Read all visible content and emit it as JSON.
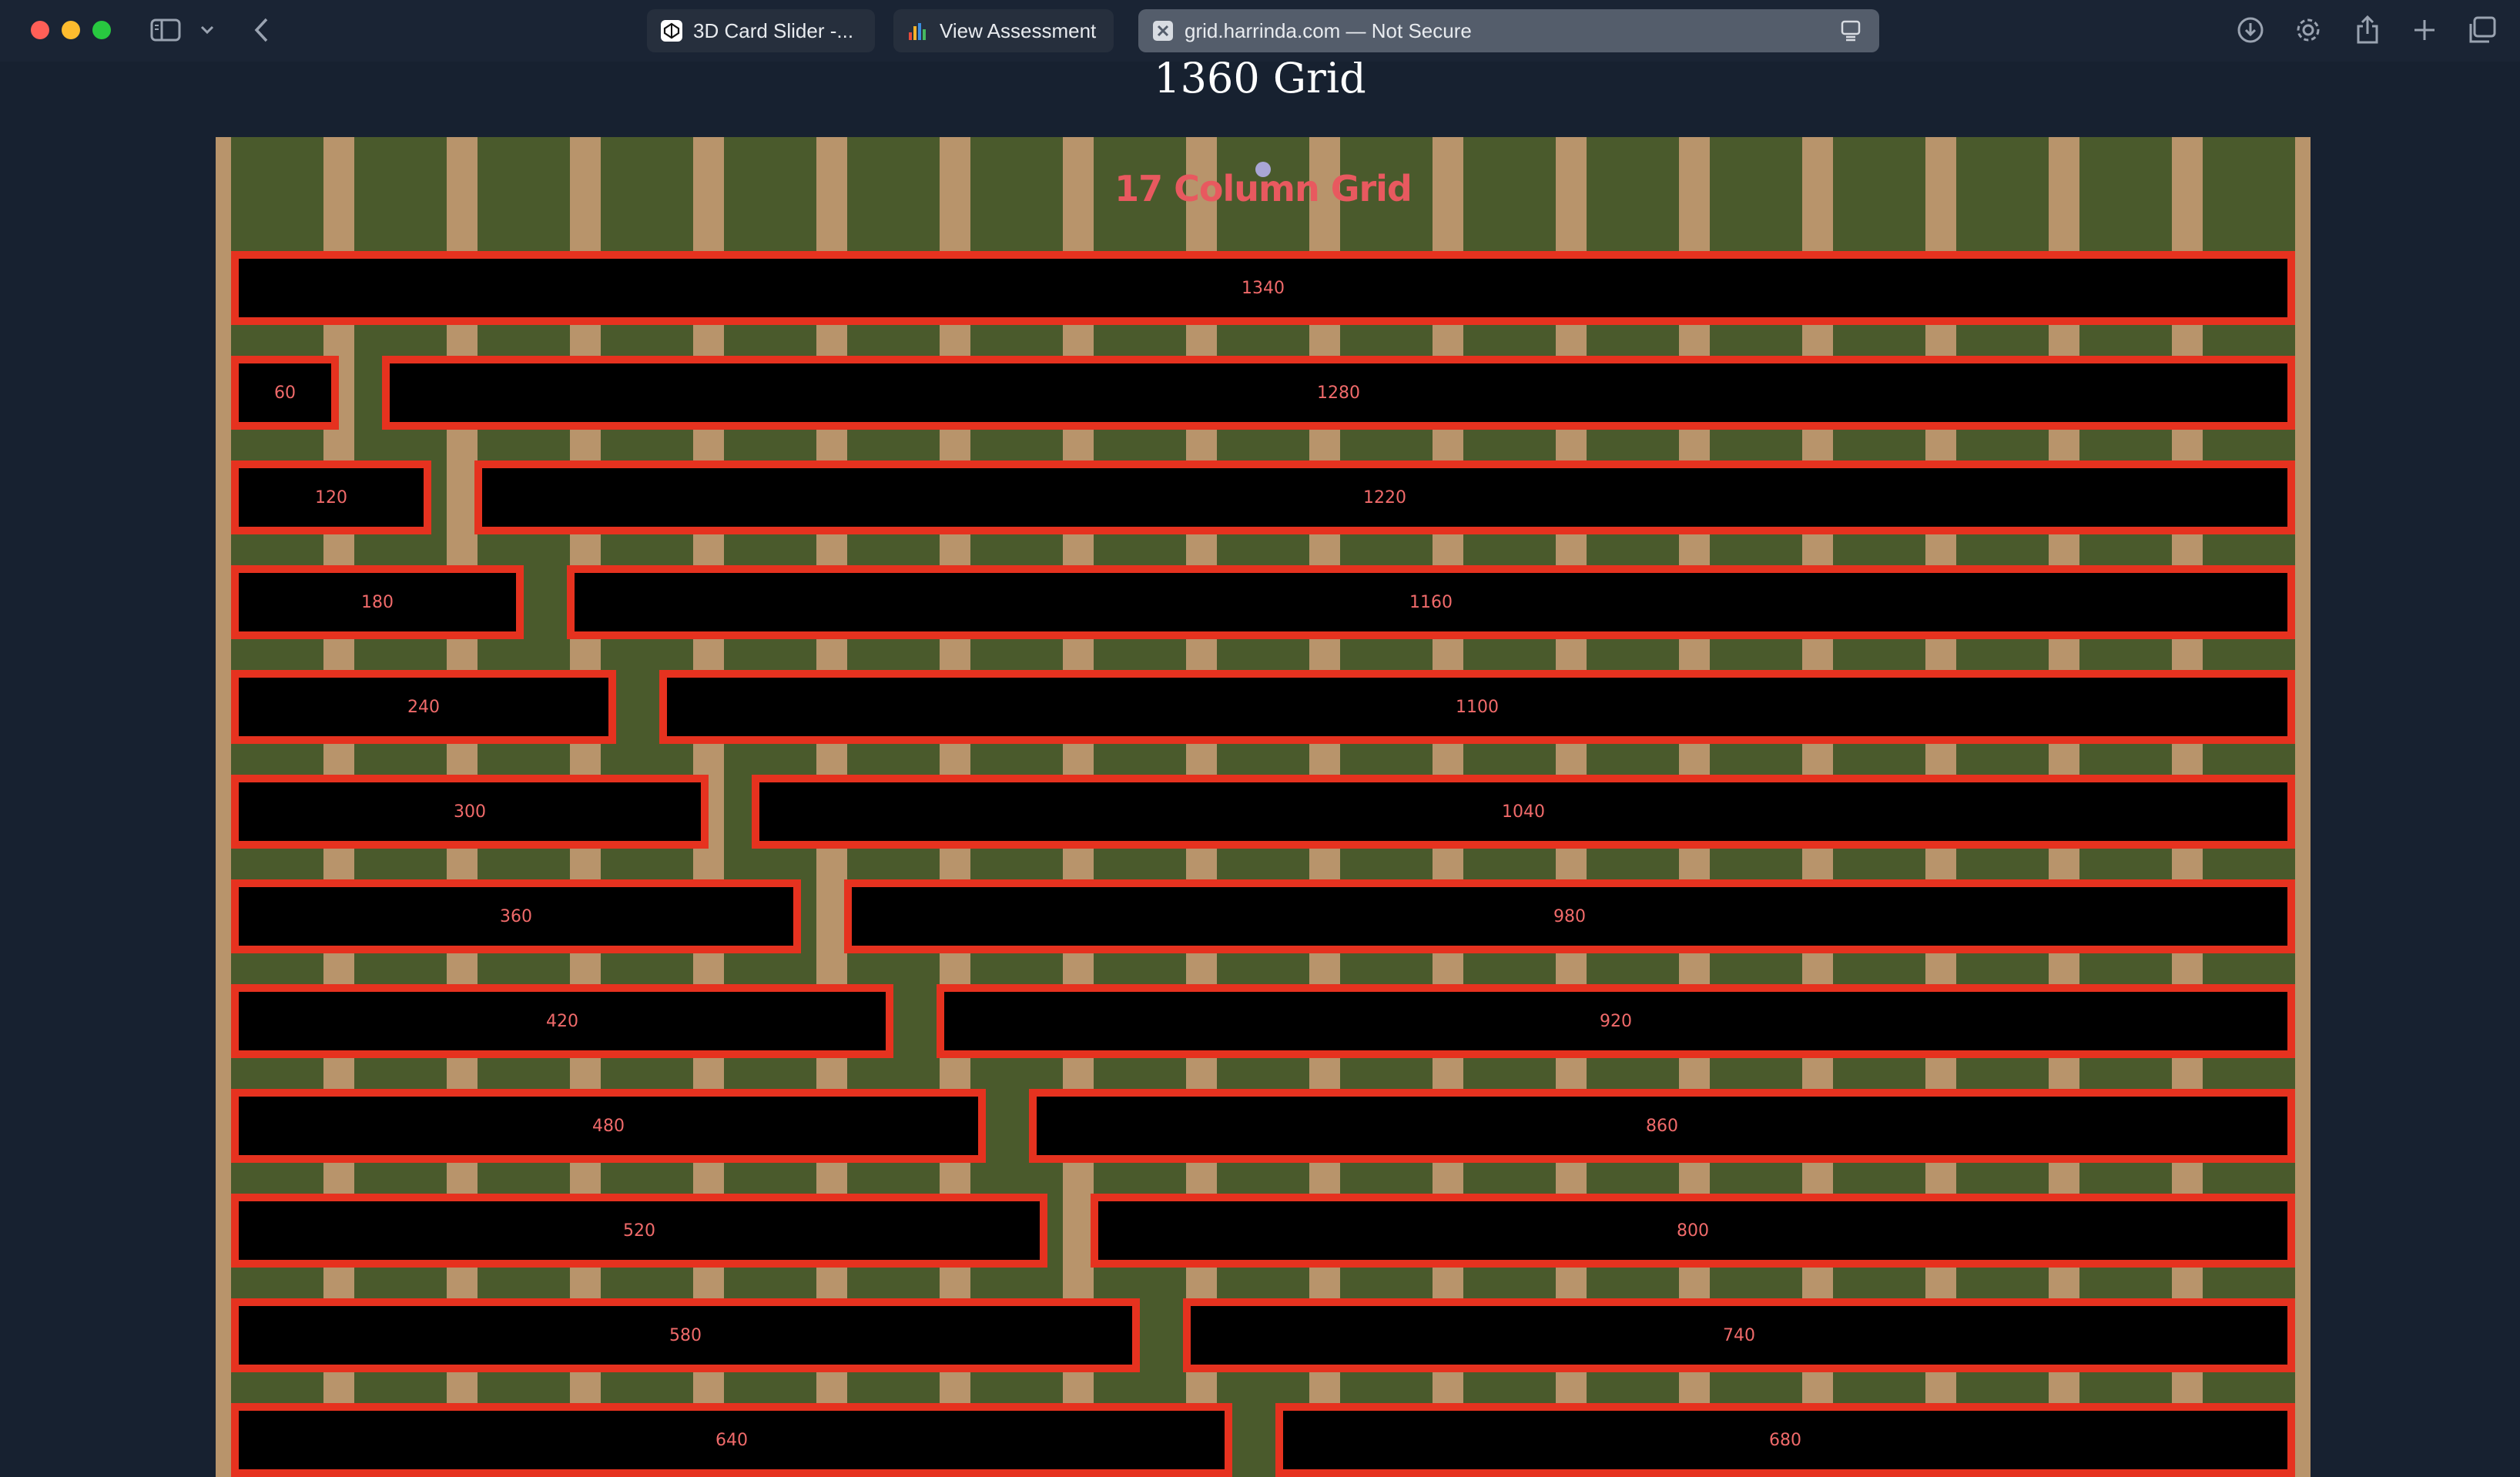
{
  "browser": {
    "tabs": [
      {
        "label": "3D Card Slider -...",
        "icon": "codepen-icon",
        "active": false
      },
      {
        "label": "View Assessment",
        "icon": "chart-bars-icon",
        "active": false
      },
      {
        "label": "grid.harrinda.com — Not Secure",
        "icon": "close-x-icon",
        "active": true
      }
    ],
    "colors": {
      "chrome_bg": "#1a2434",
      "active_tab": "#545d6b"
    }
  },
  "page": {
    "title": "1360 Grid",
    "grid_heading": "17 Column Grid",
    "colors": {
      "column": "#4a5a2c",
      "gutter": "#b8946b",
      "box_border": "#e6321f",
      "box_text": "#f06a6a",
      "heading": "#e8595f"
    },
    "rows": [
      [
        "1340"
      ],
      [
        "60",
        "1280"
      ],
      [
        "120",
        "1220"
      ],
      [
        "180",
        "1160"
      ],
      [
        "240",
        "1100"
      ],
      [
        "300",
        "1040"
      ],
      [
        "360",
        "980"
      ],
      [
        "420",
        "920"
      ],
      [
        "480",
        "860"
      ],
      [
        "520",
        "800"
      ],
      [
        "580",
        "740"
      ],
      [
        "640",
        "680"
      ]
    ]
  }
}
